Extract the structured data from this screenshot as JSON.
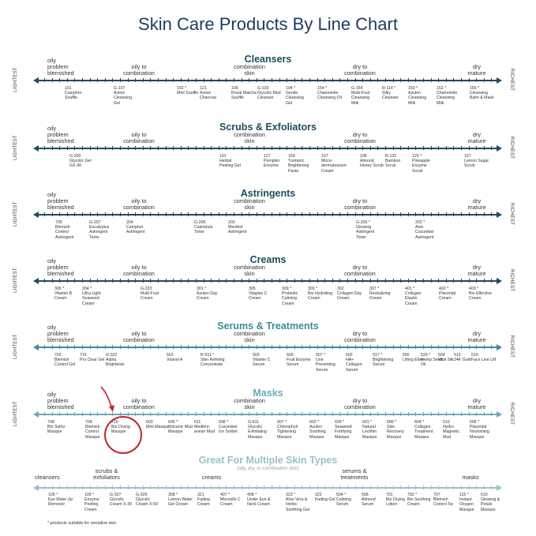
{
  "title": "Skin Care Products By Line Chart",
  "edge_labels": {
    "left": "LIGHTEST",
    "right": "RICHEST"
  },
  "skin_labels": {
    "oily": [
      "oily",
      "problem",
      "blemished"
    ],
    "oily_combo": [
      "oily to",
      "combination"
    ],
    "combo": [
      "combination",
      "skin"
    ],
    "dry_combo": [
      "dry to",
      "combination"
    ],
    "dry": [
      "dry",
      "mature"
    ]
  },
  "colors": {
    "title": "#1e3a5f",
    "dark_line": "#1e4b5f",
    "masks_line": "#6fa9b8",
    "multi": "#9dbfc7",
    "highlight": "#c0272d"
  },
  "sections": [
    {
      "title": "Cleansers",
      "products": [
        {
          "code": "101",
          "name": "Camphor Souffle",
          "x": 82
        },
        {
          "code": "G-107",
          "name": "Active Cleansing Gel",
          "x": 144
        },
        {
          "code": "102 *",
          "name": "Mint Souffle",
          "x": 224
        },
        {
          "code": "121",
          "name": "Active Charcoal",
          "x": 253
        },
        {
          "code": "100",
          "name": "Royal Matcha Souffle",
          "x": 293
        },
        {
          "code": "G-103",
          "name": "Glycolic Mud Cleanser",
          "x": 326
        },
        {
          "code": "104 *",
          "name": "Gentle Cleansing Gel",
          "x": 362
        },
        {
          "code": "154 *",
          "name": "Chamomile Cleansing Oil",
          "x": 402
        },
        {
          "code": "G-154",
          "name": "Multi-Fruit Cleansing Milk",
          "x": 445
        },
        {
          "code": "R-114 *",
          "name": "Silky Cleanser",
          "x": 484
        },
        {
          "code": "150 *",
          "name": "Azulen Cleansing Milk",
          "x": 517
        },
        {
          "code": "152 *",
          "name": "Chamomile Cleansing Milk",
          "x": 553
        },
        {
          "code": "155 *",
          "name": "Cleansing Balm & Mask",
          "x": 595
        }
      ]
    },
    {
      "title": "Scrubs & Exfoliators",
      "products": [
        {
          "code": "G-330",
          "name": "Glycolic Gel GX-30",
          "x": 88
        },
        {
          "code": "110",
          "name": "Herbal Peeling Gel",
          "x": 278
        },
        {
          "code": "127",
          "name": "Pumpkin Enzyme",
          "x": 334
        },
        {
          "code": "159",
          "name": "Turmeric Brightening Paste",
          "x": 365
        },
        {
          "code": "107",
          "name": "Micro-dermabrasion Cream",
          "x": 407
        },
        {
          "code": "106",
          "name": "Almond Honey Scrub",
          "x": 456
        },
        {
          "code": "R-125",
          "name": "Bamboo Scrub",
          "x": 488
        },
        {
          "code": "120 *",
          "name": "Pineapple Enzyme Scrub",
          "x": 522
        },
        {
          "code": "157",
          "name": "Lemon Sugar Scrub",
          "x": 588
        }
      ]
    },
    {
      "title": "Astringents",
      "products": [
        {
          "code": "705",
          "name": "Blemish Control Astringent",
          "x": 70
        },
        {
          "code": "G-207",
          "name": "Eucalyptus Astringent Toner",
          "x": 113
        },
        {
          "code": "204",
          "name": "Camphor Astringent",
          "x": 160
        },
        {
          "code": "G-206",
          "name": "Calendula Toner",
          "x": 246
        },
        {
          "code": "203",
          "name": "Menthol Astringent",
          "x": 289
        },
        {
          "code": "G-205 *",
          "name": "Ginseng Astringent Toner",
          "x": 451
        },
        {
          "code": "202 *",
          "name": "Aloe Cucumber Astringent",
          "x": 526
        }
      ]
    },
    {
      "title": "Creams",
      "products": [
        {
          "code": "300 *",
          "name": "Vitamin B Cream",
          "x": 69
        },
        {
          "code": "304 *",
          "name": "Ultra Light Seaweed Cream",
          "x": 104
        },
        {
          "code": "G-323",
          "name": "Multi-Fruit Cream",
          "x": 178
        },
        {
          "code": "301 *",
          "name": "Azulen Day Cream",
          "x": 249
        },
        {
          "code": "305",
          "name": "Vitaplex C Cream",
          "x": 315
        },
        {
          "code": "309 *",
          "name": "Probiotic Calming Cream",
          "x": 357
        },
        {
          "code": "303 *",
          "name": "Bio Hydrating Cream",
          "x": 390
        },
        {
          "code": "302",
          "name": "Collagen Day Cream",
          "x": 427
        },
        {
          "code": "307 *",
          "name": "Revitalizing Cream",
          "x": 468
        },
        {
          "code": "401 *",
          "name": "Collagen Elastin Cream",
          "x": 513
        },
        {
          "code": "402 *",
          "name": "Placental Cream",
          "x": 556
        },
        {
          "code": "403 *",
          "name": "Bio Effective Cream",
          "x": 594
        }
      ]
    },
    {
      "title": "Serums & Treatments",
      "products": [
        {
          "code": "703",
          "name": "Blemish Control Gel",
          "x": 69
        },
        {
          "code": "715",
          "name": "Pro Clear Gel",
          "x": 101
        },
        {
          "code": "G-322",
          "name": "Alpha Brightener",
          "x": 134
        },
        {
          "code": "501",
          "name": "Vitanol A",
          "x": 211
        },
        {
          "code": "R-511 *",
          "name": "Skin Refining Concentrate",
          "x": 254
        },
        {
          "code": "503",
          "name": "Vitamin C Serum",
          "x": 320
        },
        {
          "code": "505",
          "name": "Fruit Enzyme Serum",
          "x": 363
        },
        {
          "code": "507 *",
          "name": "Line Preventing Serum",
          "x": 400
        },
        {
          "code": "502",
          "name": "HA+ Collagen Serum",
          "x": 438
        },
        {
          "code": "517 *",
          "name": "Brightening Serum",
          "x": 472
        },
        {
          "code": "555",
          "name": "Lifting Elixir",
          "x": 510
        },
        {
          "code": "529 *",
          "name": "Hemp Seed Oil",
          "x": 533
        },
        {
          "code": "509",
          "name": "Vital Silk",
          "x": 555
        },
        {
          "code": "510",
          "name": "24K Gold",
          "x": 575
        },
        {
          "code": "515",
          "name": "Face Line Lift",
          "x": 597
        }
      ]
    },
    {
      "title": "Masks",
      "products": [
        {
          "code": "708",
          "name": "Bio Sulfur Masque",
          "x": 60
        },
        {
          "code": "709",
          "name": "Blemish Control Masque",
          "x": 108
        },
        {
          "code": "710",
          "name": "Bio Drying Masque",
          "x": 141
        },
        {
          "code": "603",
          "name": "Mint Masque",
          "x": 185
        },
        {
          "code": "605 *",
          "name": "Volcanic Mud Masque",
          "x": 213
        },
        {
          "code": "611",
          "name": "Mediterr-anean Mud",
          "x": 246
        },
        {
          "code": "608 *",
          "name": "Cucumber Ice Sorbet",
          "x": 277
        },
        {
          "code": "G-611",
          "name": "Glycolic Exfoliating Masque",
          "x": 314
        },
        {
          "code": "607 *",
          "name": "Chlorophyll Tightening Masque",
          "x": 351
        },
        {
          "code": "602 *",
          "name": "Azulen Soothing Masque",
          "x": 392
        },
        {
          "code": "609 *",
          "name": "Seaweed Fortifying Masque",
          "x": 424
        },
        {
          "code": "601 *",
          "name": "Natural Lecithin Masque",
          "x": 459
        },
        {
          "code": "600 *",
          "name": "Skin Recovery Masque",
          "x": 490
        },
        {
          "code": "604 *",
          "name": "Collagen Treatment Masque",
          "x": 525
        },
        {
          "code": "610",
          "name": "Hydro Magnetic Mud",
          "x": 561
        },
        {
          "code": "606 *",
          "name": "Placental Nourishing Masque",
          "x": 595
        }
      ]
    }
  ],
  "multi": {
    "title": "Great For Multiple Skin Types",
    "subtitle": "(oily, dry, or combination skin)",
    "categories": [
      {
        "label": "cleansers",
        "x": 60
      },
      {
        "label": "scrubs & exfoliators",
        "x": 135
      },
      {
        "label": "creams",
        "x": 268
      },
      {
        "label": "serums & treatments",
        "x": 449
      },
      {
        "label": "masks",
        "x": 596
      }
    ],
    "products": [
      {
        "code": "105 *",
        "name": "Eye Make Up Remover",
        "x": 61
      },
      {
        "code": "109 *",
        "name": "Enzyme Peeling Cream",
        "x": 107
      },
      {
        "code": "G-327",
        "name": "Glycolic Cream X-30",
        "x": 139
      },
      {
        "code": "G-329",
        "name": "Glycolic Cream X-50",
        "x": 172
      },
      {
        "code": "308 *",
        "name": "Lemon Water Gel Cream",
        "x": 213
      },
      {
        "code": "321",
        "name": "Fading Cream",
        "x": 250
      },
      {
        "code": "407 *",
        "name": "Microsilk C Cream",
        "x": 279
      },
      {
        "code": "408 *",
        "name": "Under Eye & Neck Cream",
        "x": 313
      },
      {
        "code": "323 *",
        "name": "Aloe Vera & Herbs Soothing Gel",
        "x": 362
      },
      {
        "code": "322",
        "name": "Fading Gel",
        "x": 399
      },
      {
        "code": "504 *",
        "name": "Calming Serum",
        "x": 426
      },
      {
        "code": "508",
        "name": "Almond Serum",
        "x": 458
      },
      {
        "code": "701",
        "name": "Bio Drying Lotion",
        "x": 489
      },
      {
        "code": "702 *",
        "name": "Bio Soothing Cream",
        "x": 516
      },
      {
        "code": "707",
        "name": "Blemish Control Tar",
        "x": 549
      },
      {
        "code": "115 *",
        "name": "Instant Oxygen Masque",
        "x": 582
      },
      {
        "code": "610",
        "name": "Ginseng & Petals Masque",
        "x": 609
      }
    ]
  },
  "footnote": "* products suitable for sensitive skin"
}
